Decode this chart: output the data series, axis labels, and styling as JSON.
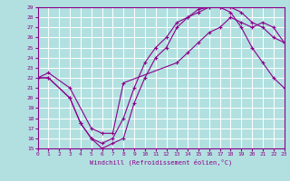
{
  "xlabel": "Windchill (Refroidissement éolien,°C)",
  "background_color": "#b2e0e0",
  "grid_color": "#ffffff",
  "line_color": "#8b008b",
  "xlim": [
    0,
    23
  ],
  "ylim": [
    15,
    29
  ],
  "xticks": [
    0,
    1,
    2,
    3,
    4,
    5,
    6,
    7,
    8,
    9,
    10,
    11,
    12,
    13,
    14,
    15,
    16,
    17,
    18,
    19,
    20,
    21,
    22,
    23
  ],
  "yticks": [
    15,
    16,
    17,
    18,
    19,
    20,
    21,
    22,
    23,
    24,
    25,
    26,
    27,
    28,
    29
  ],
  "series1_x": [
    0,
    1,
    3,
    4,
    5,
    6,
    7,
    8,
    9,
    10,
    11,
    12,
    13,
    14,
    15,
    16,
    17,
    18,
    19,
    20,
    21,
    22,
    23
  ],
  "series1_y": [
    22,
    22,
    20,
    17.5,
    16,
    15,
    15.5,
    16,
    19.5,
    22,
    24,
    25,
    27,
    28,
    28.5,
    29,
    29,
    29,
    28.5,
    27.5,
    27,
    26,
    25.5
  ],
  "series2_x": [
    0,
    1,
    3,
    4,
    5,
    6,
    7,
    8,
    9,
    10,
    11,
    12,
    13,
    14,
    15,
    16,
    17,
    18,
    19,
    20,
    21,
    22,
    23
  ],
  "series2_y": [
    22,
    22,
    20,
    17.5,
    16,
    15.5,
    16,
    18,
    21,
    23.5,
    25,
    26,
    27.5,
    28,
    28.8,
    29,
    29,
    28.5,
    27,
    25,
    23.5,
    22,
    21
  ],
  "series3_x": [
    0,
    1,
    3,
    5,
    6,
    7,
    8,
    13,
    14,
    15,
    16,
    17,
    18,
    19,
    20,
    21,
    22,
    23
  ],
  "series3_y": [
    22,
    22.5,
    21,
    17,
    16.5,
    16.5,
    21.5,
    23.5,
    24.5,
    25.5,
    26.5,
    27,
    28,
    27.5,
    27,
    27.5,
    27,
    25.5
  ],
  "tick_fontsize": 4.5,
  "xlabel_fontsize": 5.0
}
